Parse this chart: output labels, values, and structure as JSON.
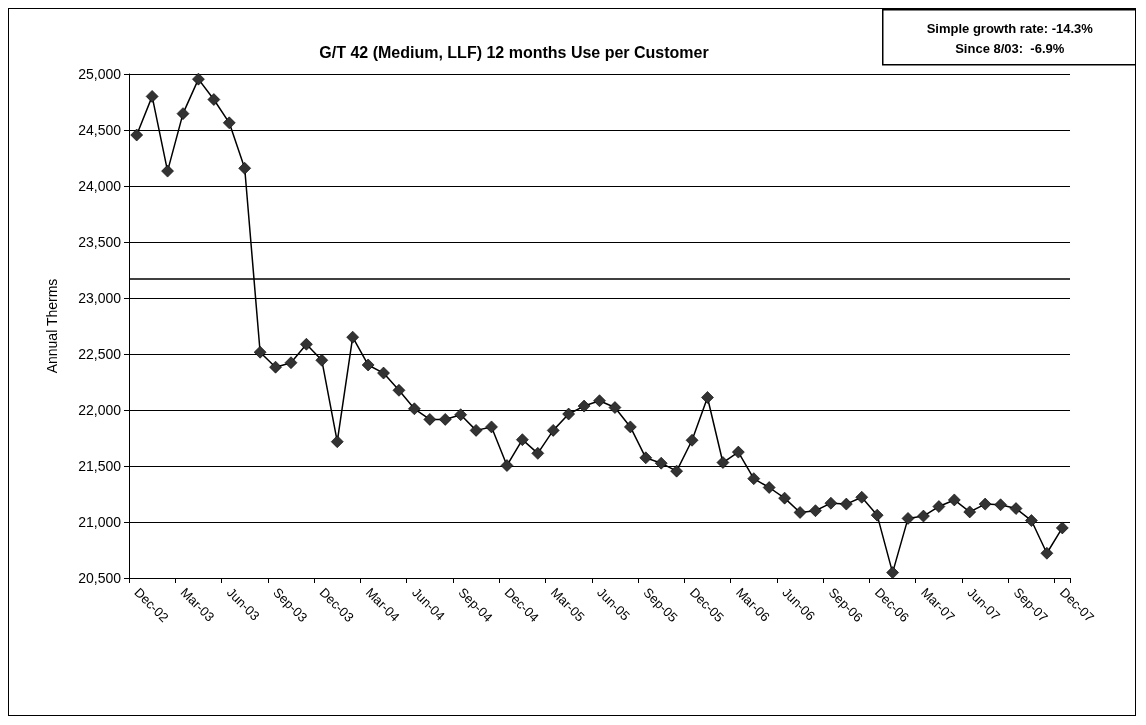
{
  "chart_data": {
    "type": "line",
    "title": "G/T 42 (Medium, LLF) 12 months Use per Customer",
    "ylabel": "Annual Therms",
    "annotations": [
      "Simple growth rate: -14.3%",
      "Since 8/03:  -6.9%"
    ],
    "categories": [
      "Dec-02",
      null,
      null,
      "Mar-03",
      null,
      null,
      "Jun-03",
      null,
      null,
      "Sep-03",
      null,
      null,
      "Dec-03",
      null,
      null,
      "Mar-04",
      null,
      null,
      "Jun-04",
      null,
      null,
      "Sep-04",
      null,
      null,
      "Dec-04",
      null,
      null,
      "Mar-05",
      null,
      null,
      "Jun-05",
      null,
      null,
      "Sep-05",
      null,
      null,
      "Dec-05",
      null,
      null,
      "Mar-06",
      null,
      null,
      "Jun-06",
      null,
      null,
      "Sep-06",
      null,
      null,
      "Dec-06",
      null,
      null,
      "Mar-07",
      null,
      null,
      "Jun-07",
      null,
      null,
      "Sep-07",
      null,
      null,
      "Dec-07"
    ],
    "series": [
      {
        "color": "#333333",
        "values": [
          24455,
          24800,
          24133,
          24646,
          24954,
          24772,
          24564,
          24158,
          22516,
          22382,
          22422,
          22587,
          22444,
          21717,
          22650,
          22402,
          22330,
          22176,
          22011,
          21916,
          21916,
          21958,
          21818,
          21849,
          21504,
          21735,
          21613,
          21818,
          21964,
          22035,
          22083,
          22022,
          21849,
          21573,
          21525,
          21454,
          21730,
          22112,
          21531,
          21624,
          21387,
          21308,
          21213,
          21085,
          21101,
          21168,
          21160,
          21221,
          21061,
          20548,
          21032,
          21053,
          21138,
          21197,
          21090,
          21160,
          21154,
          21120,
          21013,
          20721,
          20947
        ]
      }
    ],
    "ylim": [
      20500,
      25000
    ],
    "yticks": [
      {
        "value": 20500,
        "label": "20,500"
      },
      {
        "value": 21000,
        "label": "21,000"
      },
      {
        "value": 21500,
        "label": "21,500"
      },
      {
        "value": 22000,
        "label": "22,000"
      },
      {
        "value": 22500,
        "label": "22,500"
      },
      {
        "value": 23000,
        "label": "23,000"
      },
      {
        "value": 23500,
        "label": "23,500"
      },
      {
        "value": 24000,
        "label": "24,000"
      },
      {
        "value": 24500,
        "label": "24,500"
      },
      {
        "value": 25000,
        "label": "25,000"
      }
    ],
    "ref_lines": [
      {
        "axis": "y",
        "value": 23170,
        "color": "#000000"
      }
    ],
    "grid": "y",
    "marker": "diamond",
    "line_style": "solid"
  }
}
